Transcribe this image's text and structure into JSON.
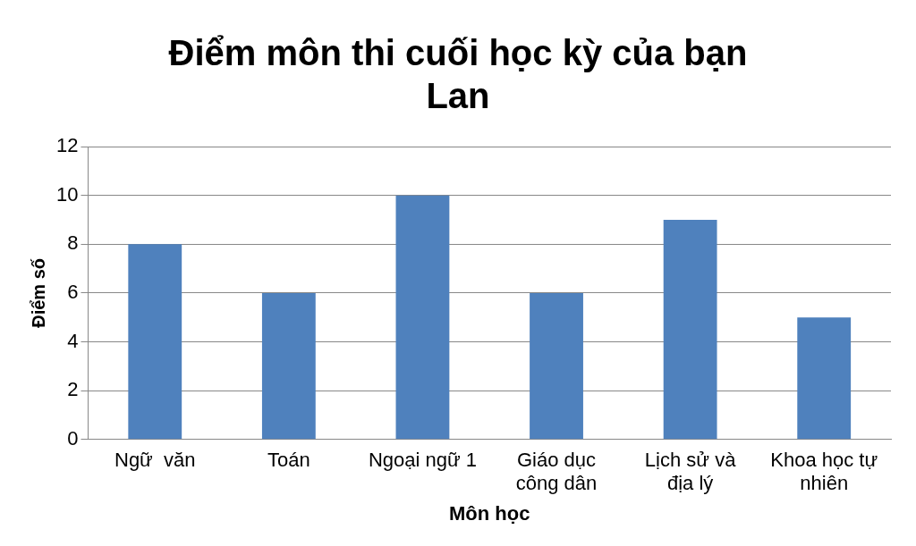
{
  "chart_data": {
    "type": "bar",
    "title": "Điểm môn thi cuối học kỳ của bạn Lan",
    "xlabel": "Môn học",
    "ylabel": "Điểm số",
    "categories": [
      "Ngữ  văn",
      "Toán",
      "Ngoại ngữ 1",
      "Giáo dục công dân",
      "Lịch sử và địa lý",
      "Khoa học tự nhiên"
    ],
    "values": [
      8,
      6,
      10,
      6,
      9,
      5
    ],
    "color": "#4f81bd",
    "ylim": [
      0,
      12
    ],
    "yticks": [
      0,
      2,
      4,
      6,
      8,
      10,
      12
    ],
    "grid": "y",
    "legend": false
  }
}
